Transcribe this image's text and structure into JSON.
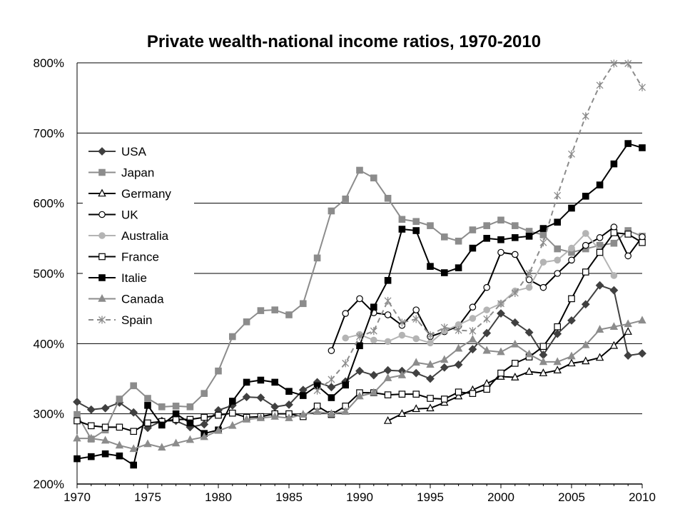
{
  "chart_data": {
    "type": "line",
    "title": "Private wealth-national income ratios, 1970-2010",
    "xlabel": "",
    "ylabel": "",
    "xlim": [
      1970,
      2010
    ],
    "ylim": [
      200,
      800
    ],
    "x_ticks": [
      "1970",
      "1975",
      "1980",
      "1985",
      "1990",
      "1995",
      "2000",
      "2005",
      "2010"
    ],
    "y_ticks": [
      "200%",
      "300%",
      "400%",
      "500%",
      "600%",
      "700%",
      "800%"
    ],
    "grid": true,
    "legend_position": "left",
    "series": [
      {
        "name": "USA",
        "color": "#404040",
        "marker": "diamond",
        "x": [
          1970,
          1971,
          1972,
          1973,
          1974,
          1975,
          1976,
          1977,
          1978,
          1979,
          1980,
          1981,
          1982,
          1983,
          1984,
          1985,
          1986,
          1987,
          1988,
          1989,
          1990,
          1991,
          1992,
          1993,
          1994,
          1995,
          1996,
          1997,
          1998,
          1999,
          2000,
          2001,
          2002,
          2003,
          2004,
          2005,
          2006,
          2007,
          2008,
          2009,
          2010
        ],
        "y": [
          317,
          306,
          308,
          316,
          302,
          280,
          290,
          290,
          281,
          285,
          305,
          312,
          324,
          323,
          310,
          313,
          334,
          345,
          338,
          346,
          361,
          355,
          362,
          361,
          358,
          350,
          366,
          370,
          392,
          415,
          443,
          430,
          416,
          384,
          414,
          433,
          456,
          483,
          476,
          383,
          386
        ]
      },
      {
        "name": "Japan",
        "color": "#8c8c8c",
        "marker": "square",
        "x": [
          1970,
          1971,
          1972,
          1973,
          1974,
          1975,
          1976,
          1977,
          1978,
          1979,
          1980,
          1981,
          1982,
          1983,
          1984,
          1985,
          1986,
          1987,
          1988,
          1989,
          1990,
          1991,
          1992,
          1993,
          1994,
          1995,
          1996,
          1997,
          1998,
          1999,
          2000,
          2001,
          2002,
          2003,
          2004,
          2005,
          2006,
          2007,
          2008,
          2009,
          2010
        ],
        "y": [
          299,
          264,
          277,
          321,
          340,
          322,
          310,
          311,
          310,
          329,
          361,
          410,
          431,
          447,
          448,
          441,
          457,
          522,
          589,
          606,
          647,
          636,
          607,
          577,
          574,
          568,
          552,
          546,
          562,
          568,
          576,
          568,
          560,
          555,
          535,
          530,
          535,
          540,
          543,
          561,
          553
        ]
      },
      {
        "name": "Germany",
        "color": "#000000",
        "marker": "triangle-open",
        "x": [
          1992,
          1993,
          1994,
          1995,
          1996,
          1997,
          1998,
          1999,
          2000,
          2001,
          2002,
          2003,
          2004,
          2005,
          2006,
          2007,
          2008,
          2009
        ],
        "y": [
          290,
          300,
          307,
          308,
          316,
          325,
          334,
          343,
          353,
          352,
          360,
          358,
          362,
          372,
          375,
          380,
          397,
          417
        ]
      },
      {
        "name": "UK",
        "color": "#000000",
        "marker": "circle-open",
        "x": [
          1988,
          1989,
          1990,
          1991,
          1992,
          1993,
          1994,
          1995,
          1996,
          1997,
          1998,
          1999,
          2000,
          2001,
          2002,
          2003,
          2004,
          2005,
          2006,
          2007,
          2008,
          2009,
          2010
        ],
        "y": [
          390,
          443,
          464,
          444,
          441,
          426,
          448,
          410,
          417,
          425,
          452,
          480,
          530,
          527,
          491,
          480,
          500,
          519,
          540,
          551,
          566,
          525,
          552
        ]
      },
      {
        "name": "Australia",
        "color": "#b4b4b4",
        "marker": "circle",
        "x": [
          1989,
          1990,
          1991,
          1992,
          1993,
          1994,
          1995,
          1996,
          1997,
          1998,
          1999,
          2000,
          2001,
          2002,
          2003,
          2004,
          2005,
          2006,
          2007,
          2008
        ],
        "y": [
          408,
          413,
          405,
          403,
          412,
          407,
          401,
          418,
          427,
          436,
          448,
          457,
          475,
          480,
          516,
          519,
          536,
          557,
          533,
          497
        ]
      },
      {
        "name": "France",
        "color": "#000000",
        "marker": "square-open",
        "x": [
          1970,
          1971,
          1972,
          1973,
          1974,
          1975,
          1976,
          1977,
          1978,
          1979,
          1980,
          1981,
          1982,
          1983,
          1984,
          1985,
          1986,
          1987,
          1988,
          1989,
          1990,
          1991,
          1992,
          1993,
          1994,
          1995,
          1996,
          1997,
          1998,
          1999,
          2000,
          2001,
          2002,
          2003,
          2004,
          2005,
          2006,
          2007,
          2008,
          2009,
          2010
        ],
        "y": [
          290,
          283,
          281,
          281,
          275,
          287,
          289,
          292,
          292,
          295,
          298,
          301,
          295,
          296,
          300,
          300,
          296,
          311,
          299,
          311,
          330,
          330,
          327,
          328,
          328,
          322,
          321,
          331,
          329,
          335,
          358,
          372,
          381,
          396,
          424,
          464,
          502,
          530,
          558,
          556,
          544
        ]
      },
      {
        "name": "Italie",
        "color": "#000000",
        "marker": "square",
        "x": [
          1970,
          1971,
          1972,
          1973,
          1974,
          1975,
          1976,
          1977,
          1978,
          1979,
          1980,
          1981,
          1982,
          1983,
          1984,
          1985,
          1986,
          1987,
          1988,
          1989,
          1990,
          1991,
          1992,
          1993,
          1994,
          1995,
          1996,
          1997,
          1998,
          1999,
          2000,
          2001,
          2002,
          2003,
          2004,
          2005,
          2006,
          2007,
          2008,
          2009,
          2010
        ],
        "y": [
          236,
          239,
          243,
          240,
          227,
          312,
          284,
          300,
          287,
          272,
          277,
          318,
          345,
          348,
          345,
          332,
          326,
          340,
          323,
          341,
          397,
          452,
          490,
          563,
          561,
          510,
          501,
          508,
          536,
          550,
          548,
          551,
          553,
          564,
          573,
          593,
          610,
          626,
          656,
          685,
          679
        ]
      },
      {
        "name": "Canada",
        "color": "#8c8c8c",
        "marker": "triangle",
        "x": [
          1970,
          1971,
          1972,
          1973,
          1974,
          1975,
          1976,
          1977,
          1978,
          1979,
          1980,
          1981,
          1982,
          1983,
          1984,
          1985,
          1986,
          1987,
          1988,
          1989,
          1990,
          1991,
          1992,
          1993,
          1994,
          1995,
          1996,
          1997,
          1998,
          1999,
          2000,
          2001,
          2002,
          2003,
          2004,
          2005,
          2006,
          2007,
          2008,
          2009,
          2010
        ],
        "y": [
          265,
          265,
          262,
          255,
          250,
          257,
          252,
          258,
          263,
          267,
          276,
          283,
          292,
          294,
          296,
          294,
          299,
          303,
          300,
          303,
          325,
          330,
          351,
          355,
          373,
          370,
          377,
          393,
          406,
          390,
          388,
          399,
          385,
          374,
          374,
          382,
          398,
          420,
          424,
          428,
          433
        ]
      },
      {
        "name": "Spain",
        "color": "#8c8c8c",
        "marker": "star",
        "dashed": true,
        "x": [
          1987,
          1988,
          1989,
          1990,
          1991,
          1992,
          1993,
          1994,
          1995,
          1996,
          1997,
          1998,
          1999,
          2000,
          2001,
          2002,
          2003,
          2004,
          2005,
          2006,
          2007,
          2008,
          2009,
          2010
        ],
        "y": [
          333,
          349,
          372,
          410,
          418,
          461,
          430,
          435,
          412,
          423,
          419,
          418,
          435,
          457,
          472,
          500,
          544,
          611,
          670,
          724,
          768,
          799,
          799,
          765
        ]
      }
    ]
  }
}
